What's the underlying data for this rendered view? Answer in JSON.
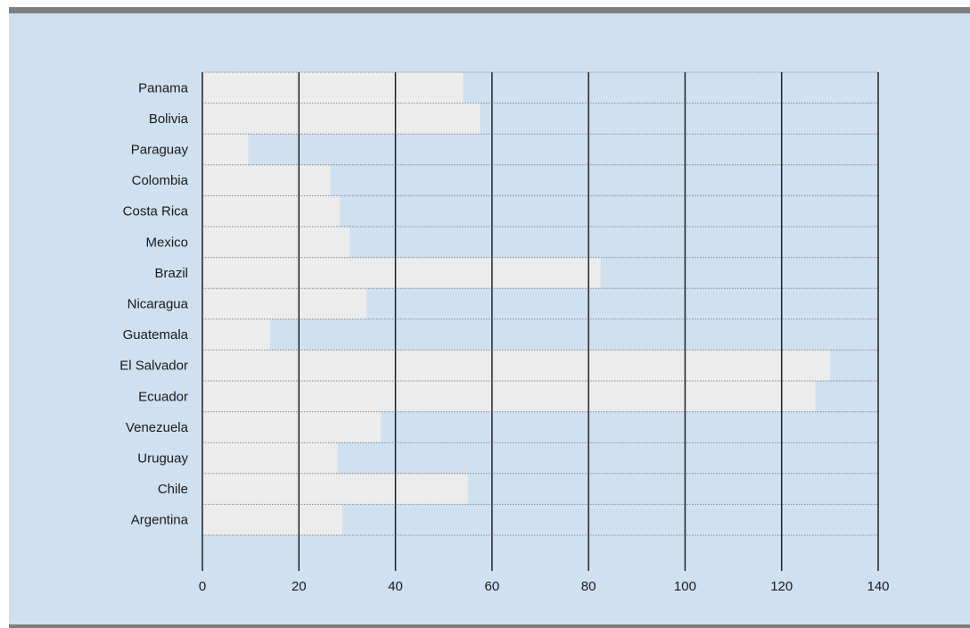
{
  "chart_data": {
    "type": "bar",
    "orientation": "horizontal",
    "categories": [
      "Panama",
      "Bolivia",
      "Paraguay",
      "Colombia",
      "Costa Rica",
      "Mexico",
      "Brazil",
      "Nicaragua",
      "Guatemala",
      "El Salvador",
      "Ecuador",
      "Venezuela",
      "Uruguay",
      "Chile",
      "Argentina"
    ],
    "values": [
      54,
      57.5,
      9.5,
      26.5,
      28.5,
      30.5,
      82.5,
      34,
      14,
      130,
      127,
      37,
      28,
      55,
      29
    ],
    "xlim": [
      0,
      140
    ],
    "xticks": [
      "0",
      "20",
      "40",
      "60",
      "80",
      "100",
      "120",
      "140"
    ],
    "title": "",
    "xlabel": "",
    "ylabel": "",
    "grid": "vertical solid lines, horizontal dotted row separators",
    "legend": "none",
    "colors": {
      "background": "#cfe0f1",
      "bar": "#ececec",
      "frame_bar": "#7f7f7f",
      "gridline": "#222222",
      "row_separator": "#888888"
    }
  }
}
